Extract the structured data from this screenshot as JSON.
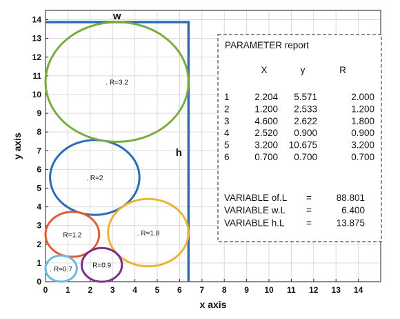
{
  "chart_data": {
    "type": "scatter",
    "xlabel": "x axis",
    "ylabel": "y axis",
    "xlim": [
      0,
      15
    ],
    "ylim": [
      0,
      14.5
    ],
    "x_ticks": [
      "0",
      "1",
      "2",
      "3",
      "4",
      "5",
      "6",
      "7",
      "8",
      "9",
      "10",
      "11",
      "12",
      "13",
      "14"
    ],
    "y_ticks": [
      "0",
      "1",
      "2",
      "3",
      "4",
      "5",
      "6",
      "7",
      "8",
      "9",
      "10",
      "11",
      "12",
      "13",
      "14"
    ],
    "grid": true,
    "container": {
      "w": 6.4,
      "h": 13.875,
      "w_label": "w",
      "h_label": "h",
      "color": "#2a6db5"
    },
    "circles": [
      {
        "x": 2.204,
        "y": 5.571,
        "r": 2.0,
        "label": ". R=2",
        "color": "#2a6db5"
      },
      {
        "x": 1.2,
        "y": 2.533,
        "r": 1.2,
        "label": "R=1.2",
        "color": "#e25a2b"
      },
      {
        "x": 4.6,
        "y": 2.622,
        "r": 1.8,
        "label": ". R=1.8",
        "color": "#ecb233"
      },
      {
        "x": 2.52,
        "y": 0.9,
        "r": 0.9,
        "label": "R=0.9",
        "color": "#7b2d8e"
      },
      {
        "x": 3.2,
        "y": 10.675,
        "r": 3.2,
        "label": ". R=3.2",
        "color": "#7aab3e"
      },
      {
        "x": 0.7,
        "y": 0.7,
        "r": 0.7,
        "label": ". R=0.7",
        "color": "#69b9e0"
      }
    ],
    "report": {
      "title": "PARAMETER report",
      "columns": [
        "X",
        "y",
        "R"
      ],
      "rows": [
        {
          "id": "1",
          "x": "2.204",
          "y": "5.571",
          "r": "2.000"
        },
        {
          "id": "2",
          "x": "1.200",
          "y": "2.533",
          "r": "1.200"
        },
        {
          "id": "3",
          "x": "4.600",
          "y": "2.622",
          "r": "1.800"
        },
        {
          "id": "4",
          "x": "2.520",
          "y": "0.900",
          "r": "0.900"
        },
        {
          "id": "5",
          "x": "3.200",
          "y": "10.675",
          "r": "3.200"
        },
        {
          "id": "6",
          "x": "0.700",
          "y": "0.700",
          "r": "0.700"
        }
      ],
      "variables": [
        {
          "name": "VARIABLE of.L",
          "eq": "=",
          "value": "88.801"
        },
        {
          "name": "VARIABLE w.L",
          "eq": "=",
          "value": "6.400"
        },
        {
          "name": "VARIABLE h.L",
          "eq": "=",
          "value": "13.875"
        }
      ]
    }
  }
}
